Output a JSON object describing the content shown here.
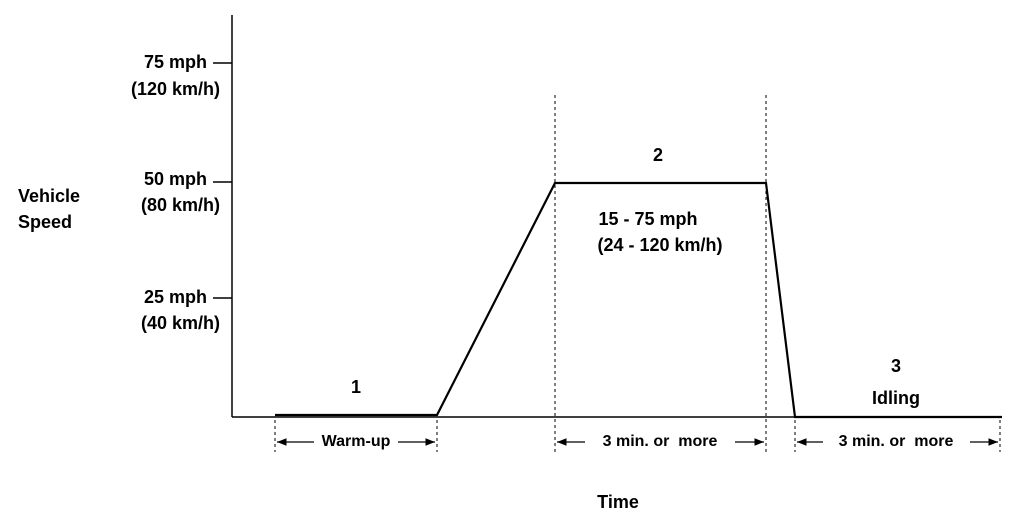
{
  "y_axis": {
    "label_lines": [
      "Vehicle",
      "Speed"
    ],
    "ticks": [
      {
        "mph": "75 mph",
        "kmh": "(120 km/h)"
      },
      {
        "mph": "50 mph",
        "kmh": "(80 km/h)"
      },
      {
        "mph": "25 mph",
        "kmh": "(40 km/h)"
      }
    ]
  },
  "x_axis": {
    "label": "Time"
  },
  "phases": [
    {
      "number": "1",
      "duration": "Warm-up"
    },
    {
      "number": "2",
      "speed_range": "15 - 75 mph",
      "speed_range_metric": "(24 - 120 km/h)",
      "duration": "3 min. or  more"
    },
    {
      "number": "3",
      "name": "Idling",
      "duration": "3 min. or  more"
    }
  ]
}
